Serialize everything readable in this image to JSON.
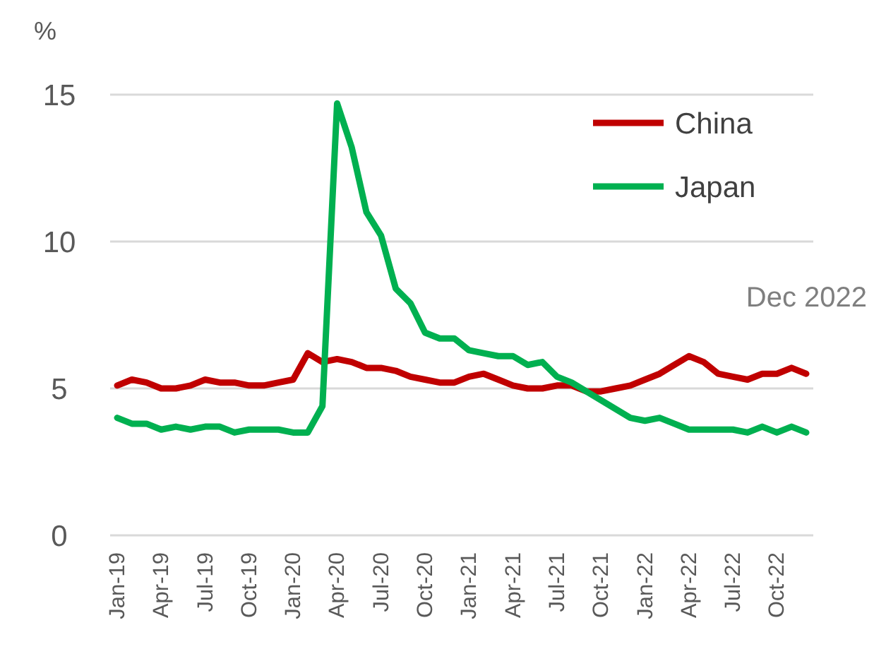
{
  "chart_data": {
    "type": "line",
    "ylabel": "%",
    "annotations": [
      "Dec 2022"
    ],
    "categories": [
      "Jan-19",
      null,
      null,
      "Apr-19",
      null,
      null,
      "Jul-19",
      null,
      null,
      "Oct-19",
      null,
      null,
      "Jan-20",
      null,
      null,
      "Apr-20",
      null,
      null,
      "Jul-20",
      null,
      null,
      "Oct-20",
      null,
      null,
      "Jan-21",
      null,
      null,
      "Apr-21",
      null,
      null,
      "Jul-21",
      null,
      null,
      "Oct-21",
      null,
      null,
      "Jan-22",
      null,
      null,
      "Apr-22",
      null,
      null,
      "Jul-22",
      null,
      null,
      "Oct-22",
      null,
      null
    ],
    "series": [
      {
        "name": "China",
        "color": "#c00000",
        "values": [
          5.1,
          5.3,
          5.2,
          5.0,
          5.0,
          5.1,
          5.3,
          5.2,
          5.2,
          5.1,
          5.1,
          5.2,
          5.3,
          6.2,
          5.9,
          6.0,
          5.9,
          5.7,
          5.7,
          5.6,
          5.4,
          5.3,
          5.2,
          5.2,
          5.4,
          5.5,
          5.3,
          5.1,
          5.0,
          5.0,
          5.1,
          5.1,
          4.9,
          4.9,
          5.0,
          5.1,
          5.3,
          5.5,
          5.8,
          6.1,
          5.9,
          5.5,
          5.4,
          5.3,
          5.5,
          5.5,
          5.7,
          5.5
        ]
      },
      {
        "name": "Japan",
        "color": "#00b050",
        "values": [
          4.0,
          3.8,
          3.8,
          3.6,
          3.7,
          3.6,
          3.7,
          3.7,
          3.5,
          3.6,
          3.6,
          3.6,
          3.5,
          3.5,
          4.4,
          14.7,
          13.2,
          11.0,
          10.2,
          8.4,
          7.9,
          6.9,
          6.7,
          6.7,
          6.3,
          6.2,
          6.1,
          6.1,
          5.8,
          5.9,
          5.4,
          5.2,
          4.9,
          4.6,
          4.3,
          4.0,
          3.9,
          4.0,
          3.8,
          3.6,
          3.6,
          3.6,
          3.6,
          3.5,
          3.7,
          3.5,
          3.7,
          3.5
        ]
      }
    ],
    "ylim": [
      0,
      15
    ],
    "yticks": [
      0,
      5,
      10,
      15
    ],
    "grid": "y",
    "legend": "top right",
    "marker": "none",
    "line_style": "solid"
  }
}
